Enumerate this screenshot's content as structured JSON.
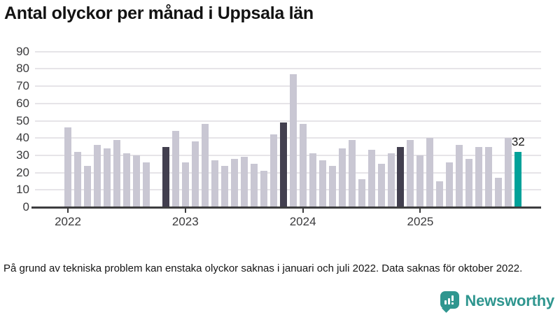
{
  "header": {
    "title": "Antal olyckor per månad i Uppsala län"
  },
  "footnote": "På grund av tekniska problem kan enstaka olyckor saknas i januari och juli 2022. Data saknas för oktober 2022.",
  "brand": {
    "name": "Newsworthy",
    "icon": "speech-bubble-bar-chart-icon",
    "color": "#2f968f"
  },
  "chart_data": {
    "type": "bar",
    "title": "Antal olyckor per månad i Uppsala län",
    "xlabel": "",
    "ylabel": "",
    "ylim": [
      0,
      90
    ],
    "yticks": [
      0,
      10,
      20,
      30,
      40,
      50,
      60,
      70,
      80,
      90
    ],
    "year_ticks": [
      "2022",
      "2023",
      "2024",
      "2025"
    ],
    "grid": "horizontal",
    "legend": "none",
    "missing_months": [
      "2022-10"
    ],
    "annotation": {
      "month": "2025-11",
      "text": "32"
    },
    "colors": {
      "default": "#c9c7d3",
      "november_highlight": "#423f4f",
      "latest": "#00a199"
    },
    "points": [
      {
        "m": "2022-01",
        "v": 46,
        "c": "default"
      },
      {
        "m": "2022-02",
        "v": 32,
        "c": "default"
      },
      {
        "m": "2022-03",
        "v": 24,
        "c": "default"
      },
      {
        "m": "2022-04",
        "v": 36,
        "c": "default"
      },
      {
        "m": "2022-05",
        "v": 34,
        "c": "default"
      },
      {
        "m": "2022-06",
        "v": 39,
        "c": "default"
      },
      {
        "m": "2022-07",
        "v": 31,
        "c": "default"
      },
      {
        "m": "2022-08",
        "v": 30,
        "c": "default"
      },
      {
        "m": "2022-09",
        "v": 26,
        "c": "default"
      },
      {
        "m": "2022-10",
        "v": null,
        "c": "default"
      },
      {
        "m": "2022-11",
        "v": 35,
        "c": "dark"
      },
      {
        "m": "2022-12",
        "v": 44,
        "c": "default"
      },
      {
        "m": "2023-01",
        "v": 26,
        "c": "default"
      },
      {
        "m": "2023-02",
        "v": 38,
        "c": "default"
      },
      {
        "m": "2023-03",
        "v": 48,
        "c": "default"
      },
      {
        "m": "2023-04",
        "v": 27,
        "c": "default"
      },
      {
        "m": "2023-05",
        "v": 24,
        "c": "default"
      },
      {
        "m": "2023-06",
        "v": 28,
        "c": "default"
      },
      {
        "m": "2023-07",
        "v": 29,
        "c": "default"
      },
      {
        "m": "2023-08",
        "v": 25,
        "c": "default"
      },
      {
        "m": "2023-09",
        "v": 21,
        "c": "default"
      },
      {
        "m": "2023-10",
        "v": 42,
        "c": "default"
      },
      {
        "m": "2023-11",
        "v": 49,
        "c": "dark"
      },
      {
        "m": "2023-12",
        "v": 77,
        "c": "default"
      },
      {
        "m": "2024-01",
        "v": 48,
        "c": "default"
      },
      {
        "m": "2024-02",
        "v": 31,
        "c": "default"
      },
      {
        "m": "2024-03",
        "v": 27,
        "c": "default"
      },
      {
        "m": "2024-04",
        "v": 24,
        "c": "default"
      },
      {
        "m": "2024-05",
        "v": 34,
        "c": "default"
      },
      {
        "m": "2024-06",
        "v": 39,
        "c": "default"
      },
      {
        "m": "2024-07",
        "v": 16,
        "c": "default"
      },
      {
        "m": "2024-08",
        "v": 33,
        "c": "default"
      },
      {
        "m": "2024-09",
        "v": 25,
        "c": "default"
      },
      {
        "m": "2024-10",
        "v": 31,
        "c": "default"
      },
      {
        "m": "2024-11",
        "v": 35,
        "c": "dark"
      },
      {
        "m": "2024-12",
        "v": 39,
        "c": "default"
      },
      {
        "m": "2025-01",
        "v": 30,
        "c": "default"
      },
      {
        "m": "2025-02",
        "v": 40,
        "c": "default"
      },
      {
        "m": "2025-03",
        "v": 15,
        "c": "default"
      },
      {
        "m": "2025-04",
        "v": 26,
        "c": "default"
      },
      {
        "m": "2025-05",
        "v": 36,
        "c": "default"
      },
      {
        "m": "2025-06",
        "v": 28,
        "c": "default"
      },
      {
        "m": "2025-07",
        "v": 35,
        "c": "default"
      },
      {
        "m": "2025-08",
        "v": 35,
        "c": "default"
      },
      {
        "m": "2025-09",
        "v": 17,
        "c": "default"
      },
      {
        "m": "2025-10",
        "v": 40,
        "c": "default"
      },
      {
        "m": "2025-11",
        "v": 32,
        "c": "latest"
      }
    ]
  }
}
